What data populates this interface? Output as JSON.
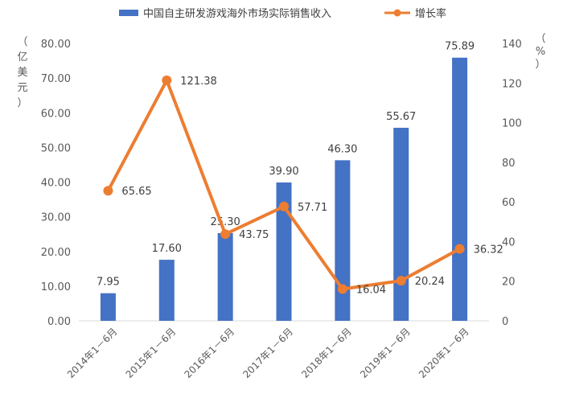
{
  "chart_data": {
    "type": "bar",
    "categories": [
      "2014年1－6月",
      "2015年1－6月",
      "2016年1－6月",
      "2017年1－6月",
      "2018年1－6月",
      "2019年1－6月",
      "2020年1－6月"
    ],
    "series": [
      {
        "name": "中国自主研发游戏海外市场实际销售收入",
        "type": "bar",
        "axis": "left",
        "values": [
          7.95,
          17.6,
          25.3,
          39.9,
          46.3,
          55.67,
          75.89
        ],
        "labels": [
          "7.95",
          "17.60",
          "25.30",
          "39.90",
          "46.30",
          "55.67",
          "75.89"
        ]
      },
      {
        "name": "增长率",
        "type": "line",
        "axis": "right",
        "values": [
          65.65,
          121.38,
          43.75,
          57.71,
          16.04,
          20.24,
          36.32
        ],
        "labels": [
          "65.65",
          "121.38",
          "43.75",
          "57.71",
          "16.04",
          "20.24",
          "36.32"
        ]
      }
    ],
    "y_left": {
      "label": "（亿美元）",
      "label_chars": [
        "（",
        "亿",
        "美",
        "元",
        "）"
      ],
      "range": [
        0,
        80
      ],
      "ticks": [
        "0.00",
        "10.00",
        "20.00",
        "30.00",
        "40.00",
        "50.00",
        "60.00",
        "70.00",
        "80.00"
      ]
    },
    "y_right": {
      "label": "（%）",
      "label_chars": [
        "（",
        "%",
        "）"
      ],
      "range": [
        0,
        140
      ],
      "ticks": [
        "0",
        "20",
        "40",
        "60",
        "80",
        "100",
        "120",
        "140"
      ]
    },
    "legend_position": "top",
    "grid": false,
    "colors": {
      "bar": "#4472C4",
      "line": "#ED7D31"
    }
  }
}
